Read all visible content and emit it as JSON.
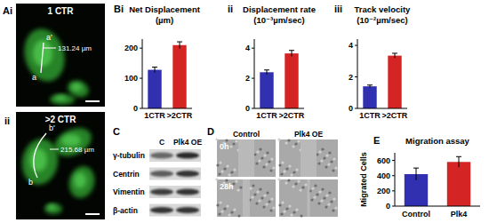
{
  "chart_data": [
    {
      "type": "bar",
      "panel_label": "Bi",
      "title": "Net Displacement",
      "subtitle": "(µm)",
      "categories": [
        "1CTR",
        ">2CTR"
      ],
      "values": [
        128,
        210
      ],
      "errors": [
        9,
        11
      ],
      "colors": [
        "#3030b0",
        "#d42424"
      ],
      "ylim": [
        0,
        230
      ],
      "yticks": [
        0,
        100,
        200
      ],
      "grid": false
    },
    {
      "type": "bar",
      "panel_label": "ii",
      "title": "Displacement rate",
      "subtitle": "(10⁻³µm/sec)",
      "categories": [
        "1CTR",
        ">2CTR"
      ],
      "values": [
        2.4,
        3.65
      ],
      "errors": [
        0.15,
        0.2
      ],
      "colors": [
        "#3030b0",
        "#d42424"
      ],
      "ylim": [
        0,
        4.6
      ],
      "yticks": [
        0,
        2,
        4
      ],
      "grid": false
    },
    {
      "type": "bar",
      "panel_label": "iii",
      "title": "Track velocity",
      "subtitle": "(10⁻²µm/sec)",
      "categories": [
        "1CTR",
        ">2CTR"
      ],
      "values": [
        1.4,
        3.35
      ],
      "errors": [
        0.08,
        0.15
      ],
      "colors": [
        "#3030b0",
        "#d42424"
      ],
      "ylim": [
        0,
        4.4
      ],
      "yticks": [
        0,
        2,
        4
      ],
      "grid": false
    },
    {
      "type": "bar",
      "panel_label": "E",
      "title": "Migration assay",
      "ylabel": "Migrated Cells",
      "categories": [
        "Control",
        "Plk4"
      ],
      "values": [
        420,
        580
      ],
      "errors": [
        80,
        70
      ],
      "colors": [
        "#3030b0",
        "#d42424"
      ],
      "ylim": [
        0,
        700
      ],
      "yticks": [
        0,
        200,
        400,
        600
      ],
      "grid": false
    }
  ],
  "images": [
    {
      "label": "Ai",
      "condition": "1 CTR",
      "start": "a",
      "end": "a'",
      "distance": "131.24 µm"
    },
    {
      "label": "ii",
      "condition": ">2 CTR",
      "start": "b",
      "end": "b'",
      "distance": "215.68 µm"
    }
  ],
  "blot": {
    "label": "C",
    "lanes": [
      "C",
      "Plk4 OE"
    ],
    "rows": [
      "γ-tubulin",
      "Centrin",
      "Vimentin",
      "β-actin"
    ]
  },
  "scratch": {
    "label": "D",
    "columns": [
      "Control",
      "Plk4 OE"
    ],
    "rows": [
      "0h",
      "28h"
    ]
  }
}
